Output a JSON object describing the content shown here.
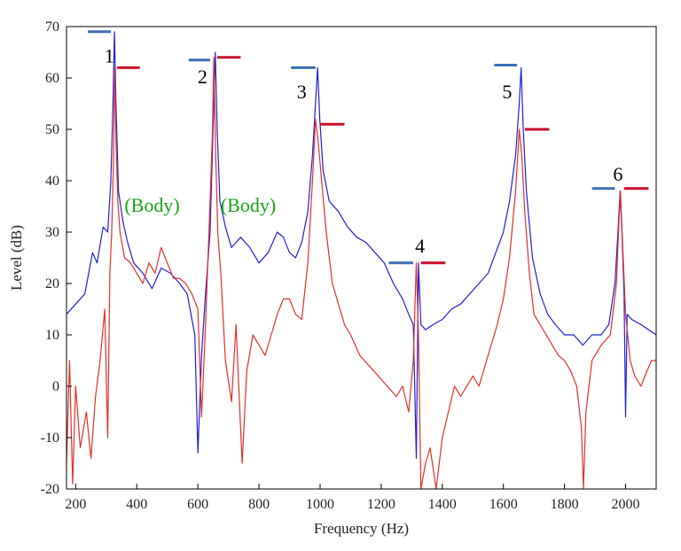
{
  "chart_data": {
    "type": "line",
    "xlabel": "Frequency (Hz)",
    "ylabel": "Level (dB)",
    "xlim": [
      170,
      2100
    ],
    "ylim": [
      -20,
      70
    ],
    "xticks": [
      200,
      400,
      600,
      800,
      1000,
      1200,
      1400,
      1600,
      1800,
      2000
    ],
    "yticks": [
      -20,
      -10,
      0,
      10,
      20,
      30,
      40,
      50,
      60,
      70
    ],
    "grid": false,
    "colors": {
      "blue": "#1f1fd6",
      "red": "#e0302a",
      "green": "#1aa01a",
      "bar_blue": "#3b6fb5",
      "bar_red": "#c8102e"
    },
    "series": [
      {
        "color": "#1f1fd6",
        "points": [
          [
            170,
            14
          ],
          [
            200,
            16
          ],
          [
            230,
            18
          ],
          [
            255,
            26
          ],
          [
            270,
            24
          ],
          [
            290,
            31
          ],
          [
            305,
            30
          ],
          [
            315,
            40
          ],
          [
            322,
            55
          ],
          [
            327,
            69
          ],
          [
            332,
            55
          ],
          [
            340,
            38
          ],
          [
            355,
            32
          ],
          [
            370,
            28
          ],
          [
            390,
            24
          ],
          [
            420,
            22
          ],
          [
            450,
            19
          ],
          [
            480,
            23
          ],
          [
            510,
            22
          ],
          [
            540,
            20
          ],
          [
            565,
            18
          ],
          [
            590,
            10
          ],
          [
            600,
            -13
          ],
          [
            612,
            6
          ],
          [
            625,
            18
          ],
          [
            640,
            30
          ],
          [
            652,
            55
          ],
          [
            657,
            65
          ],
          [
            663,
            50
          ],
          [
            672,
            36
          ],
          [
            690,
            31
          ],
          [
            710,
            27
          ],
          [
            740,
            29
          ],
          [
            770,
            27
          ],
          [
            800,
            24
          ],
          [
            830,
            26
          ],
          [
            860,
            30
          ],
          [
            880,
            29
          ],
          [
            900,
            26
          ],
          [
            920,
            25
          ],
          [
            940,
            28
          ],
          [
            960,
            34
          ],
          [
            975,
            45
          ],
          [
            985,
            55
          ],
          [
            992,
            62
          ],
          [
            999,
            52
          ],
          [
            1010,
            42
          ],
          [
            1030,
            36
          ],
          [
            1060,
            34
          ],
          [
            1090,
            31
          ],
          [
            1120,
            29
          ],
          [
            1150,
            28
          ],
          [
            1180,
            26
          ],
          [
            1210,
            24
          ],
          [
            1240,
            20
          ],
          [
            1270,
            17
          ],
          [
            1290,
            14
          ],
          [
            1305,
            12
          ],
          [
            1315,
            -14
          ],
          [
            1322,
            24
          ],
          [
            1330,
            12
          ],
          [
            1345,
            11
          ],
          [
            1370,
            12
          ],
          [
            1400,
            13
          ],
          [
            1430,
            15
          ],
          [
            1460,
            16
          ],
          [
            1490,
            18
          ],
          [
            1520,
            20
          ],
          [
            1550,
            22
          ],
          [
            1575,
            26
          ],
          [
            1600,
            30
          ],
          [
            1620,
            36
          ],
          [
            1640,
            45
          ],
          [
            1652,
            55
          ],
          [
            1658,
            62
          ],
          [
            1665,
            50
          ],
          [
            1675,
            38
          ],
          [
            1695,
            25
          ],
          [
            1720,
            18
          ],
          [
            1745,
            14
          ],
          [
            1770,
            12
          ],
          [
            1800,
            10
          ],
          [
            1830,
            10
          ],
          [
            1860,
            8
          ],
          [
            1890,
            10
          ],
          [
            1920,
            10
          ],
          [
            1945,
            12
          ],
          [
            1965,
            20
          ],
          [
            1975,
            30
          ],
          [
            1982,
            38
          ],
          [
            1988,
            30
          ],
          [
            1995,
            18
          ],
          [
            2000,
            -6
          ],
          [
            2005,
            14
          ],
          [
            2020,
            13
          ],
          [
            2050,
            12
          ],
          [
            2075,
            11
          ],
          [
            2100,
            10
          ]
        ]
      },
      {
        "color": "#e0302a",
        "points": [
          [
            170,
            -15
          ],
          [
            180,
            5
          ],
          [
            190,
            -19
          ],
          [
            200,
            0
          ],
          [
            215,
            -12
          ],
          [
            235,
            -5
          ],
          [
            250,
            -14
          ],
          [
            265,
            -2
          ],
          [
            280,
            5
          ],
          [
            295,
            15
          ],
          [
            305,
            -10
          ],
          [
            312,
            22
          ],
          [
            318,
            30
          ],
          [
            324,
            45
          ],
          [
            328,
            62
          ],
          [
            332,
            48
          ],
          [
            338,
            36
          ],
          [
            345,
            30
          ],
          [
            360,
            25
          ],
          [
            380,
            24
          ],
          [
            400,
            22
          ],
          [
            420,
            20
          ],
          [
            440,
            24
          ],
          [
            460,
            22
          ],
          [
            480,
            27
          ],
          [
            500,
            24
          ],
          [
            520,
            21
          ],
          [
            540,
            21
          ],
          [
            560,
            20
          ],
          [
            580,
            18
          ],
          [
            600,
            15
          ],
          [
            612,
            -6
          ],
          [
            625,
            12
          ],
          [
            640,
            36
          ],
          [
            648,
            50
          ],
          [
            652,
            64
          ],
          [
            658,
            46
          ],
          [
            665,
            30
          ],
          [
            675,
            22
          ],
          [
            690,
            5
          ],
          [
            710,
            -3
          ],
          [
            725,
            12
          ],
          [
            745,
            -15
          ],
          [
            760,
            3
          ],
          [
            780,
            10
          ],
          [
            800,
            8
          ],
          [
            820,
            6
          ],
          [
            840,
            10
          ],
          [
            860,
            14
          ],
          [
            880,
            17
          ],
          [
            900,
            17
          ],
          [
            920,
            14
          ],
          [
            940,
            13
          ],
          [
            960,
            24
          ],
          [
            975,
            40
          ],
          [
            985,
            52
          ],
          [
            993,
            48
          ],
          [
            1005,
            40
          ],
          [
            1020,
            30
          ],
          [
            1040,
            20
          ],
          [
            1060,
            16
          ],
          [
            1080,
            12
          ],
          [
            1100,
            10
          ],
          [
            1130,
            6
          ],
          [
            1160,
            4
          ],
          [
            1190,
            2
          ],
          [
            1220,
            0
          ],
          [
            1250,
            -2
          ],
          [
            1270,
            0
          ],
          [
            1290,
            -5
          ],
          [
            1305,
            5
          ],
          [
            1315,
            24
          ],
          [
            1322,
            10
          ],
          [
            1330,
            -20
          ],
          [
            1345,
            -15
          ],
          [
            1360,
            -12
          ],
          [
            1380,
            -20
          ],
          [
            1400,
            -10
          ],
          [
            1420,
            -5
          ],
          [
            1440,
            0
          ],
          [
            1460,
            -2
          ],
          [
            1480,
            0
          ],
          [
            1500,
            2
          ],
          [
            1520,
            0
          ],
          [
            1540,
            4
          ],
          [
            1560,
            8
          ],
          [
            1580,
            12
          ],
          [
            1600,
            17
          ],
          [
            1620,
            25
          ],
          [
            1640,
            38
          ],
          [
            1652,
            50
          ],
          [
            1660,
            45
          ],
          [
            1670,
            34
          ],
          [
            1685,
            22
          ],
          [
            1700,
            14
          ],
          [
            1720,
            12
          ],
          [
            1740,
            10
          ],
          [
            1760,
            8
          ],
          [
            1780,
            6
          ],
          [
            1800,
            5
          ],
          [
            1820,
            3
          ],
          [
            1840,
            0
          ],
          [
            1855,
            -8
          ],
          [
            1862,
            -20
          ],
          [
            1870,
            -5
          ],
          [
            1890,
            5
          ],
          [
            1920,
            8
          ],
          [
            1950,
            10
          ],
          [
            1970,
            20
          ],
          [
            1978,
            32
          ],
          [
            1983,
            38
          ],
          [
            1990,
            28
          ],
          [
            2000,
            14
          ],
          [
            2015,
            5
          ],
          [
            2030,
            2
          ],
          [
            2050,
            0
          ],
          [
            2070,
            3
          ],
          [
            2085,
            5
          ],
          [
            2100,
            5
          ]
        ]
      }
    ],
    "peak_labels": [
      {
        "text": "1",
        "x": 310,
        "y": 63
      },
      {
        "text": "2",
        "x": 615,
        "y": 59
      },
      {
        "text": "3",
        "x": 940,
        "y": 56
      },
      {
        "text": "4",
        "x": 1327,
        "y": 26
      },
      {
        "text": "5",
        "x": 1612,
        "y": 56
      },
      {
        "text": "6",
        "x": 1975,
        "y": 40
      }
    ],
    "body_labels": [
      {
        "text": "(Body)",
        "x": 450,
        "y": 34
      },
      {
        "text": "(Body)",
        "x": 765,
        "y": 34
      }
    ],
    "level_markers": [
      {
        "color": "blue",
        "x1": 240,
        "x2": 315,
        "y": 69
      },
      {
        "color": "red",
        "x1": 335,
        "x2": 410,
        "y": 62
      },
      {
        "color": "blue",
        "x1": 570,
        "x2": 640,
        "y": 63.5
      },
      {
        "color": "red",
        "x1": 663,
        "x2": 740,
        "y": 64
      },
      {
        "color": "blue",
        "x1": 905,
        "x2": 985,
        "y": 62
      },
      {
        "color": "red",
        "x1": 1000,
        "x2": 1080,
        "y": 51
      },
      {
        "color": "blue",
        "x1": 1225,
        "x2": 1305,
        "y": 24
      },
      {
        "color": "red",
        "x1": 1330,
        "x2": 1410,
        "y": 24
      },
      {
        "color": "blue",
        "x1": 1570,
        "x2": 1645,
        "y": 62.5
      },
      {
        "color": "red",
        "x1": 1670,
        "x2": 1750,
        "y": 50
      },
      {
        "color": "blue",
        "x1": 1890,
        "x2": 1965,
        "y": 38.5
      },
      {
        "color": "red",
        "x1": 1995,
        "x2": 2075,
        "y": 38.5
      }
    ]
  }
}
